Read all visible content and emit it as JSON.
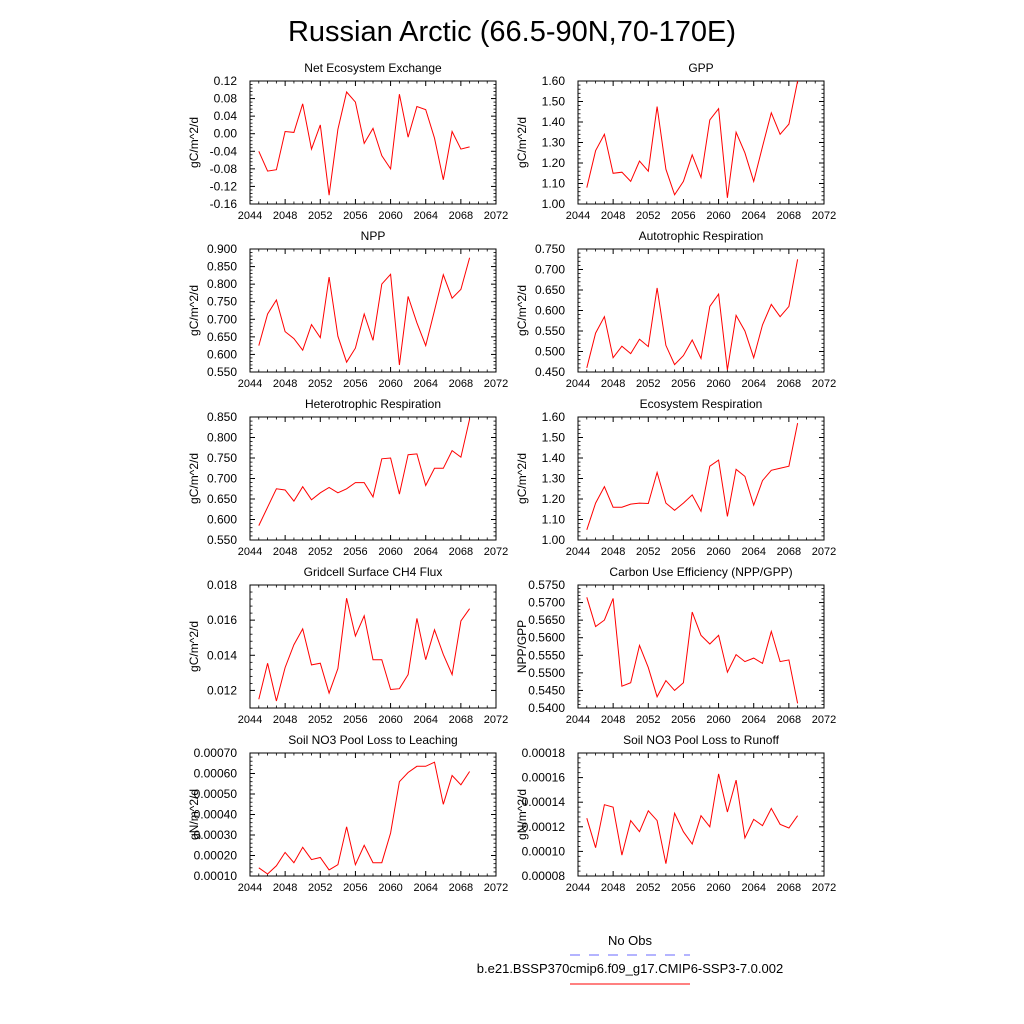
{
  "page": {
    "title": "Russian Arctic (66.5-90N,70-170E)"
  },
  "legend": {
    "obs_label": "No Obs",
    "obs_color": "#6a6aff",
    "model_label": "b.e21.BSSP370cmip6.f09_g17.CMIP6-SSP3-7.0.002",
    "model_color": "#ff0000"
  },
  "chart_data": [
    {
      "type": "line",
      "title": "Net Ecosystem Exchange",
      "ylabel": "gC/m^2/d",
      "xlabel": "",
      "xlim": [
        2044,
        2072
      ],
      "ylim": [
        -0.16,
        0.12
      ],
      "xticks": [
        2044,
        2048,
        2052,
        2056,
        2060,
        2064,
        2068,
        2072
      ],
      "yticks": [
        -0.16,
        -0.12,
        -0.08,
        -0.04,
        0.0,
        0.04,
        0.08,
        0.12
      ],
      "ytick_labels": [
        "-0.16",
        "-0.12",
        "-0.08",
        "-0.04",
        "0.00",
        "0.04",
        "0.08",
        "0.12"
      ],
      "x": [
        2045,
        2046,
        2047,
        2048,
        2049,
        2050,
        2051,
        2052,
        2053,
        2054,
        2055,
        2056,
        2057,
        2058,
        2059,
        2060,
        2061,
        2062,
        2063,
        2064,
        2065,
        2066,
        2067,
        2068,
        2069
      ],
      "series": [
        {
          "values": [
            -0.04,
            -0.085,
            -0.082,
            0.005,
            0.003,
            0.068,
            -0.035,
            0.02,
            -0.14,
            0.01,
            0.095,
            0.072,
            -0.022,
            0.012,
            -0.05,
            -0.08,
            0.09,
            -0.008,
            0.062,
            0.055,
            -0.01,
            -0.105,
            0.005,
            -0.035,
            -0.03
          ]
        }
      ]
    },
    {
      "type": "line",
      "title": "GPP",
      "ylabel": "gC/m^2/d",
      "xlabel": "",
      "xlim": [
        2044,
        2072
      ],
      "ylim": [
        1.0,
        1.6
      ],
      "xticks": [
        2044,
        2048,
        2052,
        2056,
        2060,
        2064,
        2068,
        2072
      ],
      "yticks": [
        1.0,
        1.1,
        1.2,
        1.3,
        1.4,
        1.5,
        1.6
      ],
      "ytick_labels": [
        "1.00",
        "1.10",
        "1.20",
        "1.30",
        "1.40",
        "1.50",
        "1.60"
      ],
      "x": [
        2045,
        2046,
        2047,
        2048,
        2049,
        2050,
        2051,
        2052,
        2053,
        2054,
        2055,
        2056,
        2057,
        2058,
        2059,
        2060,
        2061,
        2062,
        2063,
        2064,
        2065,
        2066,
        2067,
        2068,
        2069
      ],
      "series": [
        {
          "values": [
            1.08,
            1.26,
            1.34,
            1.15,
            1.155,
            1.11,
            1.21,
            1.16,
            1.475,
            1.17,
            1.045,
            1.11,
            1.24,
            1.13,
            1.41,
            1.465,
            1.03,
            1.35,
            1.25,
            1.11,
            1.28,
            1.445,
            1.34,
            1.39,
            1.61
          ]
        }
      ]
    },
    {
      "type": "line",
      "title": "NPP",
      "ylabel": "gC/m^2/d",
      "xlabel": "",
      "xlim": [
        2044,
        2072
      ],
      "ylim": [
        0.55,
        0.9
      ],
      "xticks": [
        2044,
        2048,
        2052,
        2056,
        2060,
        2064,
        2068,
        2072
      ],
      "yticks": [
        0.55,
        0.6,
        0.65,
        0.7,
        0.75,
        0.8,
        0.85,
        0.9
      ],
      "ytick_labels": [
        "0.550",
        "0.600",
        "0.650",
        "0.700",
        "0.750",
        "0.800",
        "0.850",
        "0.900"
      ],
      "x": [
        2045,
        2046,
        2047,
        2048,
        2049,
        2050,
        2051,
        2052,
        2053,
        2054,
        2055,
        2056,
        2057,
        2058,
        2059,
        2060,
        2061,
        2062,
        2063,
        2064,
        2065,
        2066,
        2067,
        2068,
        2069
      ],
      "series": [
        {
          "values": [
            0.625,
            0.715,
            0.755,
            0.665,
            0.645,
            0.612,
            0.685,
            0.648,
            0.82,
            0.652,
            0.578,
            0.618,
            0.715,
            0.64,
            0.8,
            0.828,
            0.57,
            0.765,
            0.69,
            0.625,
            0.725,
            0.827,
            0.76,
            0.785,
            0.875
          ]
        }
      ]
    },
    {
      "type": "line",
      "title": "Autotrophic Respiration",
      "ylabel": "gC/m^2/d",
      "xlabel": "",
      "xlim": [
        2044,
        2072
      ],
      "ylim": [
        0.45,
        0.75
      ],
      "xticks": [
        2044,
        2048,
        2052,
        2056,
        2060,
        2064,
        2068,
        2072
      ],
      "yticks": [
        0.45,
        0.5,
        0.55,
        0.6,
        0.65,
        0.7,
        0.75
      ],
      "ytick_labels": [
        "0.450",
        "0.500",
        "0.550",
        "0.600",
        "0.650",
        "0.700",
        "0.750"
      ],
      "x": [
        2045,
        2046,
        2047,
        2048,
        2049,
        2050,
        2051,
        2052,
        2053,
        2054,
        2055,
        2056,
        2057,
        2058,
        2059,
        2060,
        2061,
        2062,
        2063,
        2064,
        2065,
        2066,
        2067,
        2068,
        2069
      ],
      "series": [
        {
          "values": [
            0.46,
            0.545,
            0.585,
            0.485,
            0.513,
            0.495,
            0.53,
            0.512,
            0.655,
            0.515,
            0.468,
            0.49,
            0.528,
            0.483,
            0.61,
            0.64,
            0.455,
            0.588,
            0.55,
            0.485,
            0.565,
            0.615,
            0.585,
            0.61,
            0.725
          ]
        }
      ]
    },
    {
      "type": "line",
      "title": "Heterotrophic Respiration",
      "ylabel": "gC/m^2/d",
      "xlabel": "",
      "xlim": [
        2044,
        2072
      ],
      "ylim": [
        0.55,
        0.85
      ],
      "xticks": [
        2044,
        2048,
        2052,
        2056,
        2060,
        2064,
        2068,
        2072
      ],
      "yticks": [
        0.55,
        0.6,
        0.65,
        0.7,
        0.75,
        0.8,
        0.85
      ],
      "ytick_labels": [
        "0.550",
        "0.600",
        "0.650",
        "0.700",
        "0.750",
        "0.800",
        "0.850"
      ],
      "x": [
        2045,
        2046,
        2047,
        2048,
        2049,
        2050,
        2051,
        2052,
        2053,
        2054,
        2055,
        2056,
        2057,
        2058,
        2059,
        2060,
        2061,
        2062,
        2063,
        2064,
        2065,
        2066,
        2067,
        2068,
        2069
      ],
      "series": [
        {
          "values": [
            0.585,
            0.63,
            0.675,
            0.672,
            0.645,
            0.68,
            0.648,
            0.665,
            0.678,
            0.665,
            0.675,
            0.69,
            0.69,
            0.655,
            0.748,
            0.75,
            0.662,
            0.758,
            0.76,
            0.683,
            0.725,
            0.725,
            0.768,
            0.752,
            0.845
          ]
        }
      ]
    },
    {
      "type": "line",
      "title": "Ecosystem Respiration",
      "ylabel": "gC/m^2/d",
      "xlabel": "",
      "xlim": [
        2044,
        2072
      ],
      "ylim": [
        1.0,
        1.6
      ],
      "xticks": [
        2044,
        2048,
        2052,
        2056,
        2060,
        2064,
        2068,
        2072
      ],
      "yticks": [
        1.0,
        1.1,
        1.2,
        1.3,
        1.4,
        1.5,
        1.6
      ],
      "ytick_labels": [
        "1.00",
        "1.10",
        "1.20",
        "1.30",
        "1.40",
        "1.50",
        "1.60"
      ],
      "x": [
        2045,
        2046,
        2047,
        2048,
        2049,
        2050,
        2051,
        2052,
        2053,
        2054,
        2055,
        2056,
        2057,
        2058,
        2059,
        2060,
        2061,
        2062,
        2063,
        2064,
        2065,
        2066,
        2067,
        2068,
        2069
      ],
      "series": [
        {
          "values": [
            1.05,
            1.18,
            1.26,
            1.16,
            1.16,
            1.175,
            1.18,
            1.178,
            1.33,
            1.18,
            1.145,
            1.18,
            1.22,
            1.14,
            1.36,
            1.39,
            1.115,
            1.345,
            1.31,
            1.17,
            1.29,
            1.34,
            1.35,
            1.36,
            1.57
          ]
        }
      ]
    },
    {
      "type": "line",
      "title": "Gridcell Surface CH4 Flux",
      "ylabel": "gC/m^2/d",
      "xlabel": "",
      "xlim": [
        2044,
        2072
      ],
      "ylim": [
        0.011,
        0.018
      ],
      "xticks": [
        2044,
        2048,
        2052,
        2056,
        2060,
        2064,
        2068,
        2072
      ],
      "yticks": [
        0.012,
        0.014,
        0.016,
        0.018
      ],
      "ytick_labels": [
        "0.012",
        "0.014",
        "0.016",
        "0.018"
      ],
      "x": [
        2045,
        2046,
        2047,
        2048,
        2049,
        2050,
        2051,
        2052,
        2053,
        2054,
        2055,
        2056,
        2057,
        2058,
        2059,
        2060,
        2061,
        2062,
        2063,
        2064,
        2065,
        2066,
        2067,
        2068,
        2069
      ],
      "series": [
        {
          "values": [
            0.0115,
            0.01355,
            0.0114,
            0.0133,
            0.0146,
            0.0155,
            0.01345,
            0.01355,
            0.01185,
            0.01325,
            0.01725,
            0.0151,
            0.01625,
            0.01375,
            0.01375,
            0.01205,
            0.0121,
            0.0129,
            0.0161,
            0.01375,
            0.01545,
            0.01405,
            0.0129,
            0.01595,
            0.01665
          ]
        }
      ]
    },
    {
      "type": "line",
      "title": "Carbon Use Efficiency (NPP/GPP)",
      "ylabel": "NPP/GPP",
      "xlabel": "",
      "xlim": [
        2044,
        2072
      ],
      "ylim": [
        0.54,
        0.575
      ],
      "xticks": [
        2044,
        2048,
        2052,
        2056,
        2060,
        2064,
        2068,
        2072
      ],
      "yticks": [
        0.54,
        0.545,
        0.55,
        0.555,
        0.56,
        0.565,
        0.57,
        0.575
      ],
      "ytick_labels": [
        "0.5400",
        "0.5450",
        "0.5500",
        "0.5550",
        "0.5600",
        "0.5650",
        "0.5700",
        "0.5750"
      ],
      "x": [
        2045,
        2046,
        2047,
        2048,
        2049,
        2050,
        2051,
        2052,
        2053,
        2054,
        2055,
        2056,
        2057,
        2058,
        2059,
        2060,
        2061,
        2062,
        2063,
        2064,
        2065,
        2066,
        2067,
        2068,
        2069
      ],
      "series": [
        {
          "values": [
            0.5715,
            0.5632,
            0.565,
            0.5712,
            0.5462,
            0.5472,
            0.5578,
            0.5515,
            0.5432,
            0.5478,
            0.545,
            0.5472,
            0.5673,
            0.5607,
            0.5582,
            0.5607,
            0.5502,
            0.5552,
            0.5532,
            0.5542,
            0.5527,
            0.5618,
            0.5532,
            0.5537,
            0.5413
          ]
        }
      ]
    },
    {
      "type": "line",
      "title": "Soil NO3 Pool Loss to Leaching",
      "ylabel": "gN/m^2/d",
      "xlabel": "",
      "xlim": [
        2044,
        2072
      ],
      "ylim": [
        0.0001,
        0.0007
      ],
      "xticks": [
        2044,
        2048,
        2052,
        2056,
        2060,
        2064,
        2068,
        2072
      ],
      "yticks": [
        0.0001,
        0.0002,
        0.0003,
        0.0004,
        0.0005,
        0.0006,
        0.0007
      ],
      "ytick_labels": [
        "0.00010",
        "0.00020",
        "0.00030",
        "0.00040",
        "0.00050",
        "0.00060",
        "0.00070"
      ],
      "x": [
        2045,
        2046,
        2047,
        2048,
        2049,
        2050,
        2051,
        2052,
        2053,
        2054,
        2055,
        2056,
        2057,
        2058,
        2059,
        2060,
        2061,
        2062,
        2063,
        2064,
        2065,
        2066,
        2067,
        2068,
        2069
      ],
      "series": [
        {
          "values": [
            0.00014,
            0.00011,
            0.00015,
            0.000215,
            0.000165,
            0.00024,
            0.00018,
            0.00019,
            0.00013,
            0.000155,
            0.00034,
            0.000155,
            0.00025,
            0.000165,
            0.000165,
            0.00031,
            0.00056,
            0.000605,
            0.000635,
            0.000635,
            0.000655,
            0.00045,
            0.00059,
            0.000545,
            0.00061
          ]
        }
      ]
    },
    {
      "type": "line",
      "title": "Soil NO3 Pool Loss to Runoff",
      "ylabel": "gN/m^2/d",
      "xlabel": "",
      "xlim": [
        2044,
        2072
      ],
      "ylim": [
        8e-05,
        0.00018
      ],
      "xticks": [
        2044,
        2048,
        2052,
        2056,
        2060,
        2064,
        2068,
        2072
      ],
      "yticks": [
        8e-05,
        0.0001,
        0.00012,
        0.00014,
        0.00016,
        0.00018
      ],
      "ytick_labels": [
        "0.00008",
        "0.00010",
        "0.00012",
        "0.00014",
        "0.00016",
        "0.00018"
      ],
      "x": [
        2045,
        2046,
        2047,
        2048,
        2049,
        2050,
        2051,
        2052,
        2053,
        2054,
        2055,
        2056,
        2057,
        2058,
        2059,
        2060,
        2061,
        2062,
        2063,
        2064,
        2065,
        2066,
        2067,
        2068,
        2069
      ],
      "series": [
        {
          "values": [
            0.000127,
            0.000103,
            0.000138,
            0.000136,
            9.7e-05,
            0.000125,
            0.000116,
            0.000133,
            0.000125,
            9e-05,
            0.000131,
            0.000116,
            0.000106,
            0.000129,
            0.00012,
            0.000163,
            0.000132,
            0.000158,
            0.000111,
            0.000126,
            0.000121,
            0.000135,
            0.000122,
            0.000119,
            0.000129
          ]
        }
      ]
    }
  ]
}
